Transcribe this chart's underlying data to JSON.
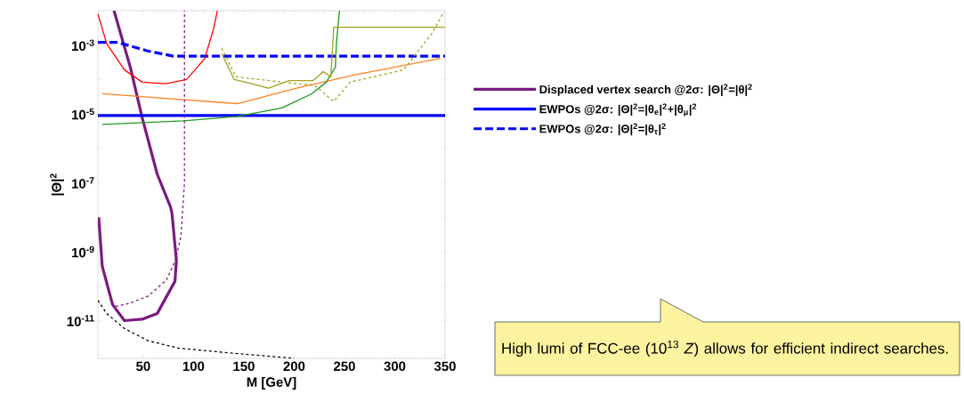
{
  "chart_data": {
    "type": "line",
    "xlabel": "M [GeV]",
    "ylabel": "|Θ|$^{2}$",
    "log": "y",
    "legend": "right",
    "xlim": [
      5,
      350
    ],
    "xticks": [
      50,
      100,
      150,
      200,
      250,
      300,
      350
    ],
    "ylim": [
      8e-13,
      0.01
    ],
    "yticks": [
      {
        "value": 1e-12,
        "label": null
      },
      {
        "value": 1e-11,
        "label": "10$^{-11}$"
      },
      {
        "value": 1e-10,
        "label": null
      },
      {
        "value": 1e-09,
        "label": "10$^{-9}$"
      },
      {
        "value": 1e-08,
        "label": null
      },
      {
        "value": 1e-07,
        "label": "10$^{-7}$"
      },
      {
        "value": 1e-06,
        "label": null
      },
      {
        "value": 1e-05,
        "label": "10$^{-5}$"
      },
      {
        "value": 0.0001,
        "label": null
      },
      {
        "value": 0.001,
        "label": "10$^{-3}$"
      }
    ],
    "series": [
      {
        "name": "Displaced vertex search @2σ: |Θ|$^{2}$=|θ|$^{2}$",
        "color": "#7b1a7f",
        "line_style": "solid",
        "x": [
          5.8,
          9.3,
          19.6,
          31.4,
          49,
          63.9,
          81.6,
          83,
          78.6,
          77.1,
          63.9,
          49,
          37.3,
          21
        ],
        "values": [
          1e-08,
          3.8e-10,
          2.9e-11,
          1e-11,
          1.1e-11,
          1.6e-11,
          1.4e-10,
          5.6e-10,
          1.3e-08,
          2e-08,
          1.8e-07,
          7.8e-06,
          0.00022,
          0.01
        ]
      },
      {
        "name": "EWPOs @2σ: |Θ|$^{2}$=|θ$_{e}$|$^{2}$+|θ$_{μ}$|$^{2}$",
        "color": "#0000ff",
        "line_style": "solid",
        "x": [
          5,
          350
        ],
        "values": [
          9e-06,
          9e-06
        ]
      },
      {
        "name": "EWPOs @2σ: |Θ|$^{2}$=|θ$_{τ}$|$^{2}$",
        "color": "#0000ff",
        "line_style": "dashed",
        "x": [
          5,
          25,
          55,
          80,
          350
        ],
        "values": [
          0.0012,
          0.0012,
          0.00067,
          0.00048,
          0.00048
        ]
      },
      {
        "color": "#ff0000",
        "line_style": "solid",
        "x": [
          5,
          13.7,
          31.4,
          49,
          72.7,
          93,
          111,
          120,
          123.7
        ],
        "values": [
          0.008,
          0.0011,
          0.00019,
          8.4e-05,
          7.6e-05,
          0.0001,
          0.0004,
          0.003,
          0.01
        ]
      },
      {
        "color": "#ff8020",
        "line_style": "solid",
        "x": [
          9.3,
          90.4,
          143.5,
          202.5,
          261.5,
          345.6
        ],
        "values": [
          3.9e-05,
          2.6e-05,
          2e-05,
          5.6e-05,
          0.00014,
          0.00041
        ]
      },
      {
        "color": "#1e9a1e",
        "line_style": "solid",
        "x": [
          9.3,
          90,
          143.5,
          187.8,
          217,
          232,
          241,
          242,
          245
        ],
        "values": [
          5e-06,
          6.3e-06,
          8.5e-06,
          1.5e-05,
          3.8e-05,
          8.4e-05,
          0.00023,
          0.0011,
          0.01
        ]
      },
      {
        "color": "#a0a020",
        "line_style": "solid",
        "x": [
          128,
          140.5,
          158,
          174.5,
          195,
          218.7,
          229,
          236.4,
          239.4,
          350
        ],
        "values": [
          0.00057,
          0.0001,
          7.6e-05,
          5.6e-05,
          9.3e-05,
          9.3e-05,
          0.00017,
          0.00012,
          0.0033,
          0.0033
        ]
      },
      {
        "color": "#a0a020",
        "line_style": "dashed",
        "x": [
          128,
          142,
          202.5,
          220,
          239.4,
          255.6,
          308.7,
          338,
          348.5
        ],
        "values": [
          0.00082,
          0.00012,
          7.6e-05,
          6.9e-05,
          2.3e-05,
          8.4e-05,
          0.00019,
          0.0024,
          0.0089
        ]
      },
      {
        "color": "#7b1a7f",
        "line_style": "dashed",
        "x": [
          22.6,
          37,
          55,
          73,
          82,
          87.5,
          91,
          91
        ],
        "values": [
          2.6e-11,
          3.2e-11,
          5.2e-11,
          1.5e-10,
          5.6e-10,
          2.8e-09,
          1e-07,
          0.01
        ]
      },
      {
        "color": "#000000",
        "line_style": "dashed",
        "x": [
          5,
          13.7,
          31.4,
          55,
          84.5,
          143.5,
          200
        ],
        "values": [
          3.9e-11,
          1.6e-11,
          5.9e-12,
          2.6e-12,
          1.6e-12,
          1.1e-12,
          8e-13
        ]
      }
    ],
    "annotations": [
      "High lumi of FCC-ee (10$^{13}$ *Z*) allows for efficient indirect searches."
    ]
  }
}
